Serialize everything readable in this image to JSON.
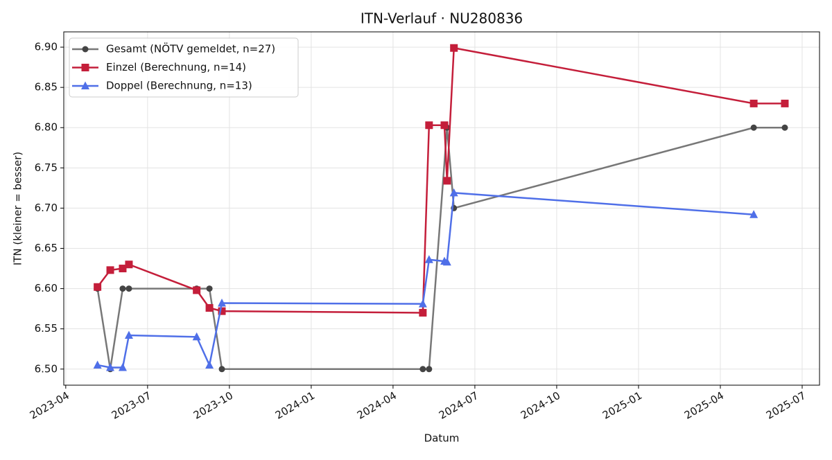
{
  "chart_data": {
    "type": "line",
    "title": "ITN-Verlauf · NU280836",
    "xlabel": "Datum",
    "ylabel": "ITN  (kleiner = besser)",
    "xlim": [
      2023.244,
      2025.553
    ],
    "xticks": [
      {
        "value": 2023.25,
        "label": "2023-04"
      },
      {
        "value": 2023.5,
        "label": "2023-07"
      },
      {
        "value": 2023.75,
        "label": "2023-10"
      },
      {
        "value": 2024.0,
        "label": "2024-01"
      },
      {
        "value": 2024.25,
        "label": "2024-04"
      },
      {
        "value": 2024.5,
        "label": "2024-07"
      },
      {
        "value": 2024.75,
        "label": "2024-10"
      },
      {
        "value": 2025.0,
        "label": "2025-01"
      },
      {
        "value": 2025.25,
        "label": "2025-04"
      },
      {
        "value": 2025.5,
        "label": "2025-07"
      }
    ],
    "ylim": [
      6.48,
      6.919
    ],
    "yticks": [
      {
        "value": 6.5,
        "label": "6.50"
      },
      {
        "value": 6.55,
        "label": "6.55"
      },
      {
        "value": 6.6,
        "label": "6.60"
      },
      {
        "value": 6.65,
        "label": "6.65"
      },
      {
        "value": 6.7,
        "label": "6.70"
      },
      {
        "value": 6.75,
        "label": "6.75"
      },
      {
        "value": 6.8,
        "label": "6.80"
      },
      {
        "value": 6.85,
        "label": "6.85"
      },
      {
        "value": 6.9,
        "label": "6.90"
      }
    ],
    "grid": true,
    "legend": "upper-left",
    "series": [
      {
        "name": "Gesamt (NÖTV gemeldet, n=27)",
        "color": "#777777",
        "marker_color": "#444444",
        "marker": "circle",
        "x": [
          2023.347,
          2023.386,
          2023.424,
          2023.443,
          2023.65,
          2023.689,
          2023.727,
          2024.341,
          2024.36,
          2024.415,
          2024.436,
          2025.352,
          2025.447
        ],
        "values": [
          6.6,
          6.5,
          6.6,
          6.6,
          6.6,
          6.6,
          6.5,
          6.5,
          6.5,
          6.8,
          6.7,
          6.8,
          6.8
        ]
      },
      {
        "name": "Einzel (Berechnung, n=14)",
        "color": "#c41e3a",
        "marker_color": "#c41e3a",
        "marker": "square",
        "x": [
          2023.347,
          2023.386,
          2023.424,
          2023.443,
          2023.65,
          2023.689,
          2023.727,
          2024.341,
          2024.36,
          2024.407,
          2024.415,
          2024.436,
          2025.352,
          2025.447
        ],
        "values": [
          6.602,
          6.623,
          6.625,
          6.63,
          6.598,
          6.576,
          6.572,
          6.57,
          6.803,
          6.803,
          6.734,
          6.899,
          6.83,
          6.83
        ]
      },
      {
        "name": "Doppel (Berechnung, n=13)",
        "color": "#4f6fe8",
        "marker_color": "#4f6fe8",
        "marker": "triangle",
        "x": [
          2023.347,
          2023.386,
          2023.424,
          2023.443,
          2023.65,
          2023.689,
          2023.727,
          2024.341,
          2024.36,
          2024.407,
          2024.415,
          2024.436,
          2025.352
        ],
        "values": [
          6.505,
          6.502,
          6.502,
          6.542,
          6.54,
          6.505,
          6.582,
          6.581,
          6.636,
          6.634,
          6.633,
          6.719,
          6.692
        ]
      }
    ]
  }
}
